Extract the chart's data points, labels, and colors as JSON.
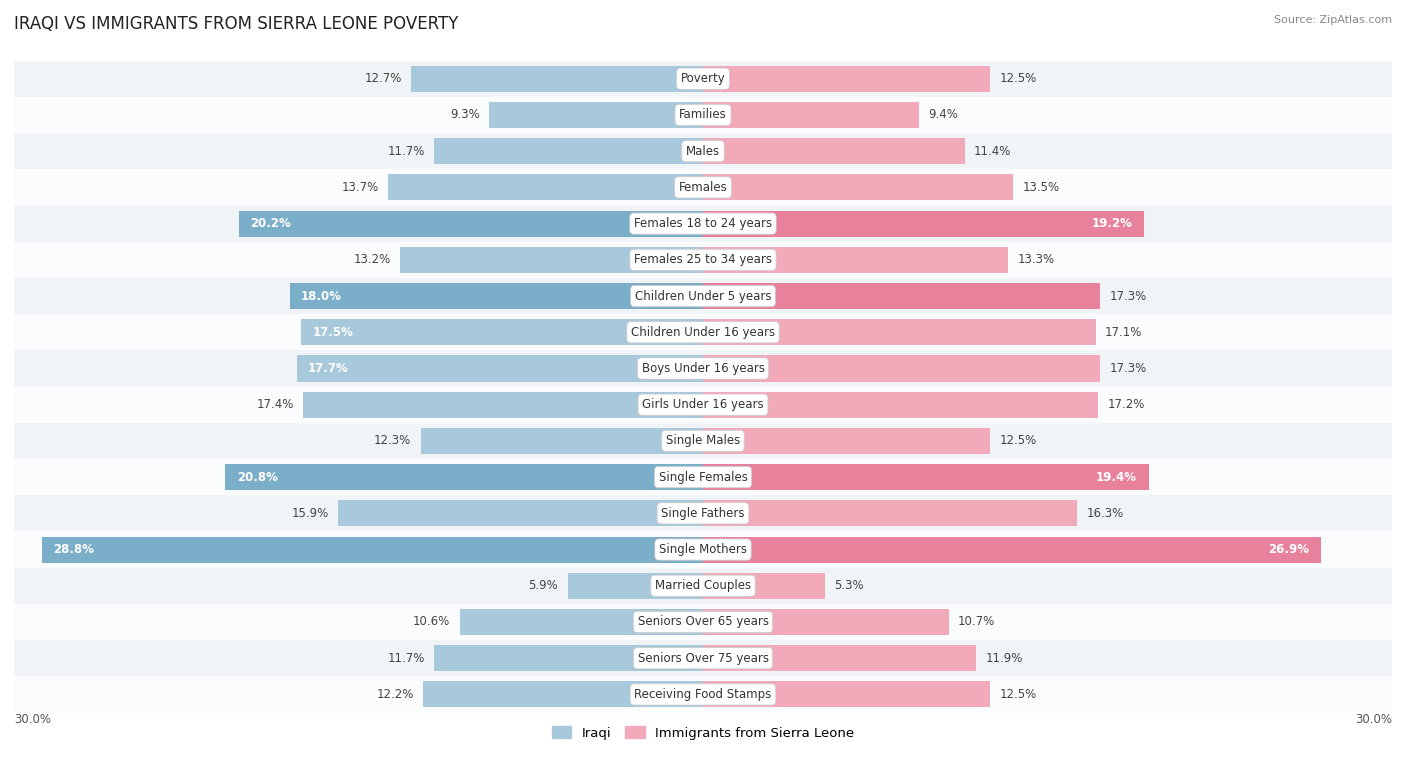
{
  "title": "IRAQI VS IMMIGRANTS FROM SIERRA LEONE POVERTY",
  "source": "Source: ZipAtlas.com",
  "categories": [
    "Poverty",
    "Families",
    "Males",
    "Females",
    "Females 18 to 24 years",
    "Females 25 to 34 years",
    "Children Under 5 years",
    "Children Under 16 years",
    "Boys Under 16 years",
    "Girls Under 16 years",
    "Single Males",
    "Single Females",
    "Single Fathers",
    "Single Mothers",
    "Married Couples",
    "Seniors Over 65 years",
    "Seniors Over 75 years",
    "Receiving Food Stamps"
  ],
  "iraqi_values": [
    12.7,
    9.3,
    11.7,
    13.7,
    20.2,
    13.2,
    18.0,
    17.5,
    17.7,
    17.4,
    12.3,
    20.8,
    15.9,
    28.8,
    5.9,
    10.6,
    11.7,
    12.2
  ],
  "sierra_leone_values": [
    12.5,
    9.4,
    11.4,
    13.5,
    19.2,
    13.3,
    17.3,
    17.1,
    17.3,
    17.2,
    12.5,
    19.4,
    16.3,
    26.9,
    5.3,
    10.7,
    11.9,
    12.5
  ],
  "iraqi_color_normal": "#A8C8DC",
  "iraqi_color_highlight": "#7BAEC9",
  "sierra_leone_color_normal": "#F2AABB",
  "sierra_leone_color_highlight": "#E8829C",
  "row_bg_color_light": "#F0F4F7",
  "row_bg_color_white": "#FAFCFD",
  "max_value": 30.0,
  "label_fontsize": 8.5,
  "title_fontsize": 12,
  "source_fontsize": 8,
  "legend_fontsize": 9.5,
  "axis_label_fontsize": 8.5,
  "bar_height": 0.72,
  "highlighted_categories": [
    "Females 18 to 24 years",
    "Children Under 5 years",
    "Single Females",
    "Single Mothers"
  ],
  "white_label_threshold": 17.5
}
